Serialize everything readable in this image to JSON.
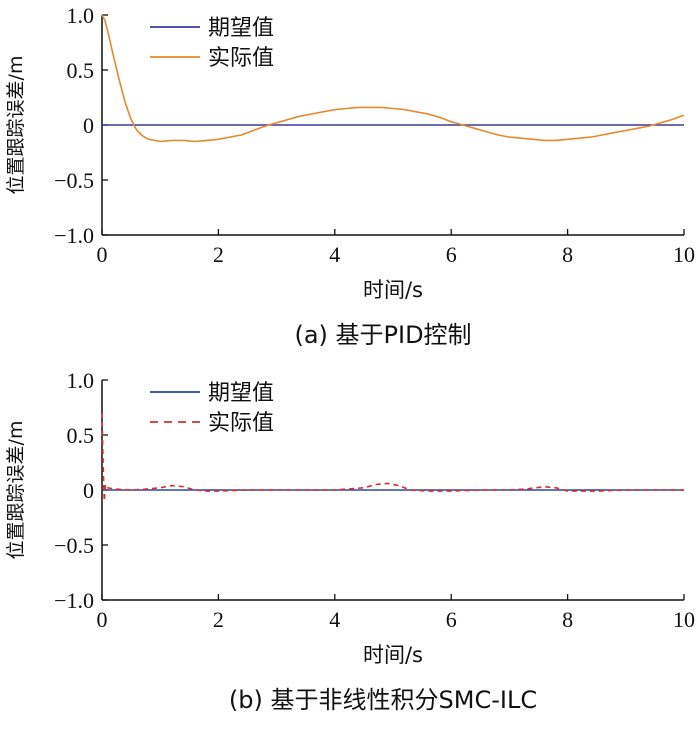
{
  "chart_data": [
    {
      "id": "a",
      "type": "line",
      "caption": "(a)  基于PID控制",
      "xlabel": "时间/s",
      "ylabel": "位置跟踪误差/m",
      "xlim": [
        0,
        10
      ],
      "ylim": [
        -1.0,
        1.0
      ],
      "xticks": [
        "0",
        "2",
        "4",
        "6",
        "8",
        "10"
      ],
      "yticks": [
        "1.0",
        "0.5",
        "0",
        "−0.5",
        "−1.0"
      ],
      "legend_position": "top-left",
      "series": [
        {
          "name": "期望值",
          "color": "#3b3b9e",
          "style": "solid",
          "x": [
            0,
            10
          ],
          "y": [
            0,
            0
          ]
        },
        {
          "name": "实际值",
          "color": "#e8882e",
          "style": "solid",
          "x": [
            0,
            0.05,
            0.1,
            0.2,
            0.3,
            0.4,
            0.5,
            0.6,
            0.7,
            0.8,
            0.9,
            1.0,
            1.2,
            1.4,
            1.6,
            1.8,
            2.0,
            2.2,
            2.4,
            2.6,
            2.8,
            3.0,
            3.2,
            3.4,
            3.6,
            3.8,
            4.0,
            4.2,
            4.4,
            4.6,
            4.8,
            5.0,
            5.2,
            5.4,
            5.6,
            5.8,
            6.0,
            6.2,
            6.4,
            6.6,
            6.8,
            7.0,
            7.2,
            7.4,
            7.6,
            7.8,
            8.0,
            8.2,
            8.4,
            8.6,
            8.8,
            9.0,
            9.2,
            9.4,
            9.6,
            9.8,
            10.0
          ],
          "y": [
            1.0,
            0.95,
            0.85,
            0.62,
            0.4,
            0.2,
            0.05,
            -0.05,
            -0.1,
            -0.13,
            -0.14,
            -0.15,
            -0.14,
            -0.14,
            -0.15,
            -0.14,
            -0.13,
            -0.11,
            -0.09,
            -0.05,
            -0.01,
            0.02,
            0.05,
            0.08,
            0.1,
            0.12,
            0.14,
            0.15,
            0.16,
            0.16,
            0.16,
            0.15,
            0.14,
            0.12,
            0.1,
            0.07,
            0.03,
            0.0,
            -0.03,
            -0.06,
            -0.09,
            -0.11,
            -0.12,
            -0.13,
            -0.14,
            -0.14,
            -0.13,
            -0.12,
            -0.11,
            -0.09,
            -0.07,
            -0.05,
            -0.03,
            -0.01,
            0.02,
            0.05,
            0.09
          ]
        }
      ]
    },
    {
      "id": "b",
      "type": "line",
      "caption": "(b)  基于非线性积分SMC-ILC",
      "xlabel": "时间/s",
      "ylabel": "位置跟踪误差/m",
      "xlim": [
        0,
        10
      ],
      "ylim": [
        -1.0,
        1.0
      ],
      "xticks": [
        "0",
        "2",
        "4",
        "6",
        "8",
        "10"
      ],
      "yticks": [
        "1.0",
        "0.5",
        "0",
        "−0.5",
        "−1.0"
      ],
      "legend_position": "top-left",
      "series": [
        {
          "name": "期望值",
          "color": "#2a4a9e",
          "style": "solid",
          "x": [
            0,
            10
          ],
          "y": [
            0,
            0
          ]
        },
        {
          "name": "实际值",
          "color": "#d9302a",
          "style": "dashed",
          "x": [
            0,
            0.02,
            0.04,
            0.06,
            0.1,
            0.2,
            0.5,
            0.8,
            1.0,
            1.2,
            1.4,
            1.6,
            1.8,
            2.0,
            2.5,
            3.0,
            3.5,
            4.0,
            4.5,
            4.7,
            4.9,
            5.1,
            5.3,
            5.6,
            6.0,
            6.5,
            7.0,
            7.3,
            7.6,
            7.8,
            8.0,
            8.5,
            9.0,
            9.5,
            10.0
          ],
          "y": [
            0.7,
            0.2,
            -0.1,
            0.05,
            0.02,
            0.01,
            0.0,
            0.01,
            0.02,
            0.04,
            0.03,
            0.0,
            -0.01,
            -0.01,
            0.0,
            0.0,
            0.0,
            0.0,
            0.02,
            0.05,
            0.06,
            0.04,
            0.0,
            -0.01,
            -0.01,
            0.0,
            0.0,
            0.01,
            0.03,
            0.02,
            -0.01,
            -0.01,
            0.0,
            0.0,
            0.0
          ]
        }
      ]
    }
  ]
}
